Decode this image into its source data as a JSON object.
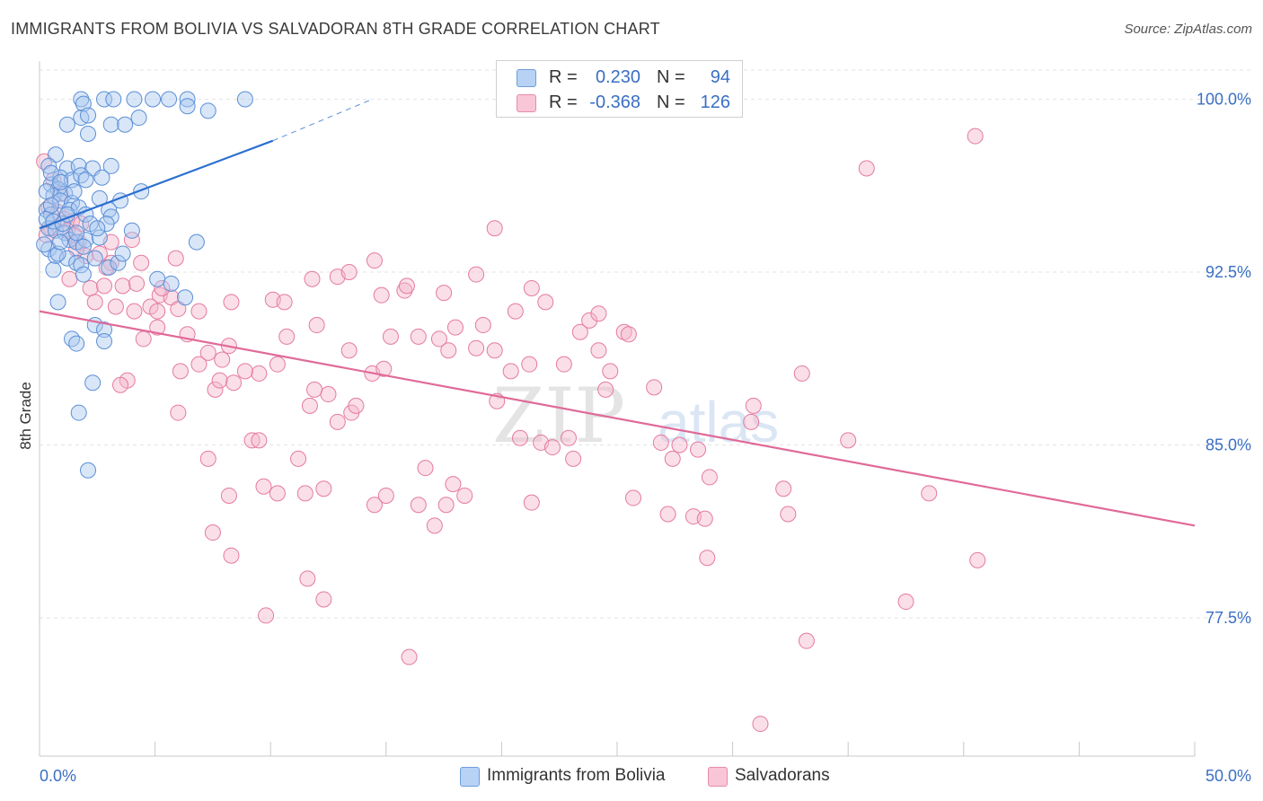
{
  "header": {
    "title": "IMMIGRANTS FROM BOLIVIA VS SALVADORAN 8TH GRADE CORRELATION CHART",
    "source": "Source: ZipAtlas.com"
  },
  "legend": {
    "rows": [
      {
        "r_label": "R =",
        "r_value": "0.230",
        "n_label": "N =",
        "n_value": "94"
      },
      {
        "r_label": "R =",
        "r_value": "-0.368",
        "n_label": "N =",
        "n_value": "126"
      }
    ]
  },
  "watermark": {
    "zip": "ZIP",
    "atlas": "atlas"
  },
  "colors": {
    "blue_fill": "#a9c8f0",
    "blue_stroke": "#5b8fd6",
    "blue_line": "#2c6fcf",
    "pink_fill": "#f5b8cc",
    "pink_stroke": "#e57aa0",
    "pink_line": "#e06a98",
    "axis_label": "#3a6fc4",
    "grid": "#e3e3e3"
  },
  "chart_data": {
    "type": "scatter",
    "ylabel": "8th Grade",
    "xlim": [
      0,
      50
    ],
    "ylim": [
      71.5,
      101.5
    ],
    "x_tick_labels": [
      {
        "value": 0,
        "label": "0.0%"
      },
      {
        "value": 50,
        "label": "50.0%"
      }
    ],
    "y_tick_labels": [
      {
        "value": 100,
        "label": "100.0%"
      },
      {
        "value": 92.5,
        "label": "92.5%"
      },
      {
        "value": 85,
        "label": "85.0%"
      },
      {
        "value": 77.5,
        "label": "77.5%"
      }
    ],
    "grid": true,
    "series": [
      {
        "name": "Immigrants from Bolivia",
        "trend": {
          "x0": 0,
          "y0": 94.4,
          "x1": 10.1,
          "y1": 98.2,
          "dash_to_x": 14.4,
          "dash_to_y": 100.0
        },
        "points": [
          [
            1.8,
            100.0
          ],
          [
            2.8,
            100.0
          ],
          [
            3.2,
            100.0
          ],
          [
            4.1,
            100.0
          ],
          [
            4.9,
            100.0
          ],
          [
            5.6,
            100.0
          ],
          [
            6.4,
            100.0
          ],
          [
            8.9,
            100.0
          ],
          [
            1.9,
            99.8
          ],
          [
            6.4,
            99.7
          ],
          [
            7.3,
            99.5
          ],
          [
            1.8,
            99.2
          ],
          [
            2.1,
            99.3
          ],
          [
            4.3,
            99.2
          ],
          [
            1.2,
            98.9
          ],
          [
            3.1,
            98.9
          ],
          [
            3.7,
            98.9
          ],
          [
            2.1,
            98.5
          ],
          [
            0.7,
            97.6
          ],
          [
            0.4,
            97.1
          ],
          [
            1.2,
            97.0
          ],
          [
            1.7,
            97.1
          ],
          [
            2.3,
            97.0
          ],
          [
            3.1,
            97.1
          ],
          [
            0.9,
            96.6
          ],
          [
            1.4,
            96.5
          ],
          [
            1.8,
            96.7
          ],
          [
            2.0,
            96.5
          ],
          [
            2.7,
            96.6
          ],
          [
            0.5,
            96.3
          ],
          [
            0.8,
            96.1
          ],
          [
            0.6,
            95.8
          ],
          [
            1.1,
            95.9
          ],
          [
            0.9,
            95.6
          ],
          [
            1.4,
            95.5
          ],
          [
            2.6,
            95.7
          ],
          [
            3.5,
            95.6
          ],
          [
            4.4,
            96.0
          ],
          [
            0.3,
            95.2
          ],
          [
            0.5,
            95.0
          ],
          [
            1.3,
            95.2
          ],
          [
            1.7,
            95.3
          ],
          [
            2.0,
            95.0
          ],
          [
            3.0,
            95.2
          ],
          [
            3.1,
            94.9
          ],
          [
            2.2,
            94.6
          ],
          [
            2.9,
            94.6
          ],
          [
            0.4,
            94.4
          ],
          [
            0.7,
            94.3
          ],
          [
            1.1,
            94.2
          ],
          [
            1.3,
            93.9
          ],
          [
            1.6,
            93.8
          ],
          [
            2.0,
            93.9
          ],
          [
            2.6,
            94.0
          ],
          [
            4.0,
            94.3
          ],
          [
            6.8,
            93.8
          ],
          [
            0.4,
            93.5
          ],
          [
            0.7,
            93.2
          ],
          [
            1.2,
            93.1
          ],
          [
            1.6,
            92.9
          ],
          [
            1.8,
            92.8
          ],
          [
            0.6,
            92.6
          ],
          [
            1.9,
            92.4
          ],
          [
            3.0,
            92.7
          ],
          [
            3.4,
            92.9
          ],
          [
            5.1,
            92.2
          ],
          [
            5.7,
            92.0
          ],
          [
            6.3,
            91.4
          ],
          [
            0.8,
            91.2
          ],
          [
            2.4,
            90.2
          ],
          [
            2.8,
            90.0
          ],
          [
            1.4,
            89.6
          ],
          [
            1.6,
            89.4
          ],
          [
            2.8,
            89.5
          ],
          [
            2.3,
            87.7
          ],
          [
            1.7,
            86.4
          ],
          [
            2.1,
            83.9
          ],
          [
            0.5,
            96.8
          ],
          [
            0.9,
            96.4
          ],
          [
            1.5,
            96.0
          ],
          [
            0.3,
            94.8
          ],
          [
            0.6,
            94.7
          ],
          [
            1.0,
            94.6
          ],
          [
            0.2,
            93.7
          ],
          [
            2.4,
            93.1
          ],
          [
            0.8,
            93.3
          ],
          [
            1.9,
            93.6
          ],
          [
            1.2,
            95.0
          ],
          [
            0.5,
            95.4
          ],
          [
            2.5,
            94.4
          ],
          [
            3.6,
            93.3
          ],
          [
            0.3,
            96.0
          ],
          [
            1.6,
            94.2
          ],
          [
            0.9,
            93.8
          ]
        ]
      },
      {
        "name": "Salvadorans",
        "trend": {
          "x0": 0,
          "y0": 90.8,
          "x1": 50,
          "y1": 81.5
        },
        "points": [
          [
            0.2,
            97.3
          ],
          [
            0.6,
            96.5
          ],
          [
            0.9,
            95.9
          ],
          [
            0.4,
            95.3
          ],
          [
            0.8,
            95.1
          ],
          [
            1.1,
            94.8
          ],
          [
            1.4,
            94.7
          ],
          [
            1.8,
            94.6
          ],
          [
            1.2,
            94.3
          ],
          [
            1.5,
            94.1
          ],
          [
            1.7,
            93.8
          ],
          [
            2.0,
            93.2
          ],
          [
            2.6,
            93.3
          ],
          [
            3.1,
            92.9
          ],
          [
            2.2,
            91.8
          ],
          [
            2.8,
            91.9
          ],
          [
            3.6,
            91.9
          ],
          [
            4.2,
            92.0
          ],
          [
            5.2,
            91.5
          ],
          [
            5.7,
            91.4
          ],
          [
            4.8,
            91.0
          ],
          [
            3.3,
            91.0
          ],
          [
            5.1,
            90.8
          ],
          [
            6.0,
            90.9
          ],
          [
            4.1,
            90.8
          ],
          [
            4.5,
            89.6
          ],
          [
            5.1,
            90.1
          ],
          [
            6.4,
            89.8
          ],
          [
            4.4,
            92.9
          ],
          [
            5.9,
            93.1
          ],
          [
            6.9,
            90.8
          ],
          [
            8.3,
            91.2
          ],
          [
            10.1,
            91.3
          ],
          [
            10.6,
            91.2
          ],
          [
            11.8,
            92.2
          ],
          [
            12.9,
            92.3
          ],
          [
            13.4,
            92.5
          ],
          [
            14.5,
            93.0
          ],
          [
            14.8,
            91.5
          ],
          [
            15.8,
            91.7
          ],
          [
            15.9,
            91.9
          ],
          [
            17.5,
            91.6
          ],
          [
            18.9,
            92.4
          ],
          [
            19.7,
            94.4
          ],
          [
            20.6,
            90.8
          ],
          [
            21.3,
            91.8
          ],
          [
            21.9,
            91.2
          ],
          [
            23.4,
            89.9
          ],
          [
            23.8,
            90.4
          ],
          [
            24.2,
            90.7
          ],
          [
            13.4,
            89.1
          ],
          [
            15.2,
            89.7
          ],
          [
            16.4,
            89.7
          ],
          [
            14.4,
            88.1
          ],
          [
            12.5,
            87.2
          ],
          [
            11.9,
            87.4
          ],
          [
            10.3,
            88.5
          ],
          [
            9.5,
            88.1
          ],
          [
            8.9,
            88.2
          ],
          [
            8.2,
            89.3
          ],
          [
            7.3,
            89.0
          ],
          [
            6.9,
            88.5
          ],
          [
            6.1,
            88.2
          ],
          [
            7.6,
            87.4
          ],
          [
            7.8,
            87.8
          ],
          [
            8.4,
            87.7
          ],
          [
            3.8,
            87.8
          ],
          [
            6.0,
            86.4
          ],
          [
            7.3,
            84.4
          ],
          [
            8.2,
            82.8
          ],
          [
            9.2,
            85.2
          ],
          [
            9.5,
            85.2
          ],
          [
            10.3,
            82.9
          ],
          [
            11.2,
            84.4
          ],
          [
            11.5,
            82.9
          ],
          [
            12.3,
            83.1
          ],
          [
            11.7,
            86.7
          ],
          [
            12.9,
            86.0
          ],
          [
            13.5,
            86.4
          ],
          [
            14.5,
            82.4
          ],
          [
            15.0,
            82.8
          ],
          [
            16.4,
            82.4
          ],
          [
            17.1,
            81.5
          ],
          [
            17.6,
            82.4
          ],
          [
            17.9,
            83.3
          ],
          [
            18.4,
            82.8
          ],
          [
            17.3,
            89.6
          ],
          [
            18.0,
            90.1
          ],
          [
            18.9,
            89.2
          ],
          [
            19.2,
            90.2
          ],
          [
            19.7,
            89.1
          ],
          [
            21.2,
            88.5
          ],
          [
            20.4,
            88.2
          ],
          [
            19.8,
            86.9
          ],
          [
            20.8,
            85.3
          ],
          [
            21.7,
            85.1
          ],
          [
            22.2,
            84.9
          ],
          [
            21.3,
            82.5
          ],
          [
            22.9,
            85.3
          ],
          [
            23.1,
            84.4
          ],
          [
            24.5,
            87.4
          ],
          [
            24.2,
            89.1
          ],
          [
            24.7,
            88.2
          ],
          [
            25.3,
            89.9
          ],
          [
            26.9,
            85.1
          ],
          [
            27.2,
            82.0
          ],
          [
            25.7,
            82.7
          ],
          [
            27.7,
            85.0
          ],
          [
            27.4,
            84.4
          ],
          [
            28.3,
            81.9
          ],
          [
            28.5,
            84.8
          ],
          [
            28.9,
            80.1
          ],
          [
            28.8,
            81.8
          ],
          [
            29.0,
            83.6
          ],
          [
            30.8,
            86.0
          ],
          [
            32.2,
            83.1
          ],
          [
            32.4,
            82.0
          ],
          [
            33.2,
            76.5
          ],
          [
            33.0,
            88.1
          ],
          [
            35.0,
            85.2
          ],
          [
            35.8,
            97.0
          ],
          [
            40.5,
            98.4
          ],
          [
            40.6,
            80.0
          ],
          [
            38.5,
            82.9
          ],
          [
            37.5,
            78.2
          ],
          [
            31.2,
            72.9
          ],
          [
            25.5,
            89.8
          ],
          [
            22.7,
            88.5
          ],
          [
            9.8,
            77.6
          ],
          [
            11.6,
            79.2
          ],
          [
            12.3,
            78.3
          ],
          [
            16.0,
            75.8
          ],
          [
            7.5,
            81.2
          ],
          [
            3.1,
            93.8
          ],
          [
            2.9,
            92.7
          ],
          [
            2.4,
            91.2
          ],
          [
            1.3,
            92.2
          ],
          [
            4.0,
            93.9
          ],
          [
            3.5,
            87.6
          ],
          [
            5.3,
            91.8
          ],
          [
            7.9,
            88.7
          ],
          [
            0.5,
            94.4
          ],
          [
            1.6,
            93.5
          ],
          [
            10.7,
            89.7
          ],
          [
            12.0,
            90.2
          ],
          [
            0.3,
            94.1
          ],
          [
            8.3,
            80.2
          ],
          [
            9.7,
            83.2
          ],
          [
            17.7,
            89.1
          ],
          [
            26.6,
            87.5
          ],
          [
            30.9,
            86.7
          ],
          [
            13.7,
            86.7
          ],
          [
            14.9,
            88.3
          ],
          [
            16.7,
            84.0
          ]
        ]
      }
    ]
  },
  "bottom_legend": {
    "items": [
      "Immigrants from Bolivia",
      "Salvadorans"
    ]
  }
}
